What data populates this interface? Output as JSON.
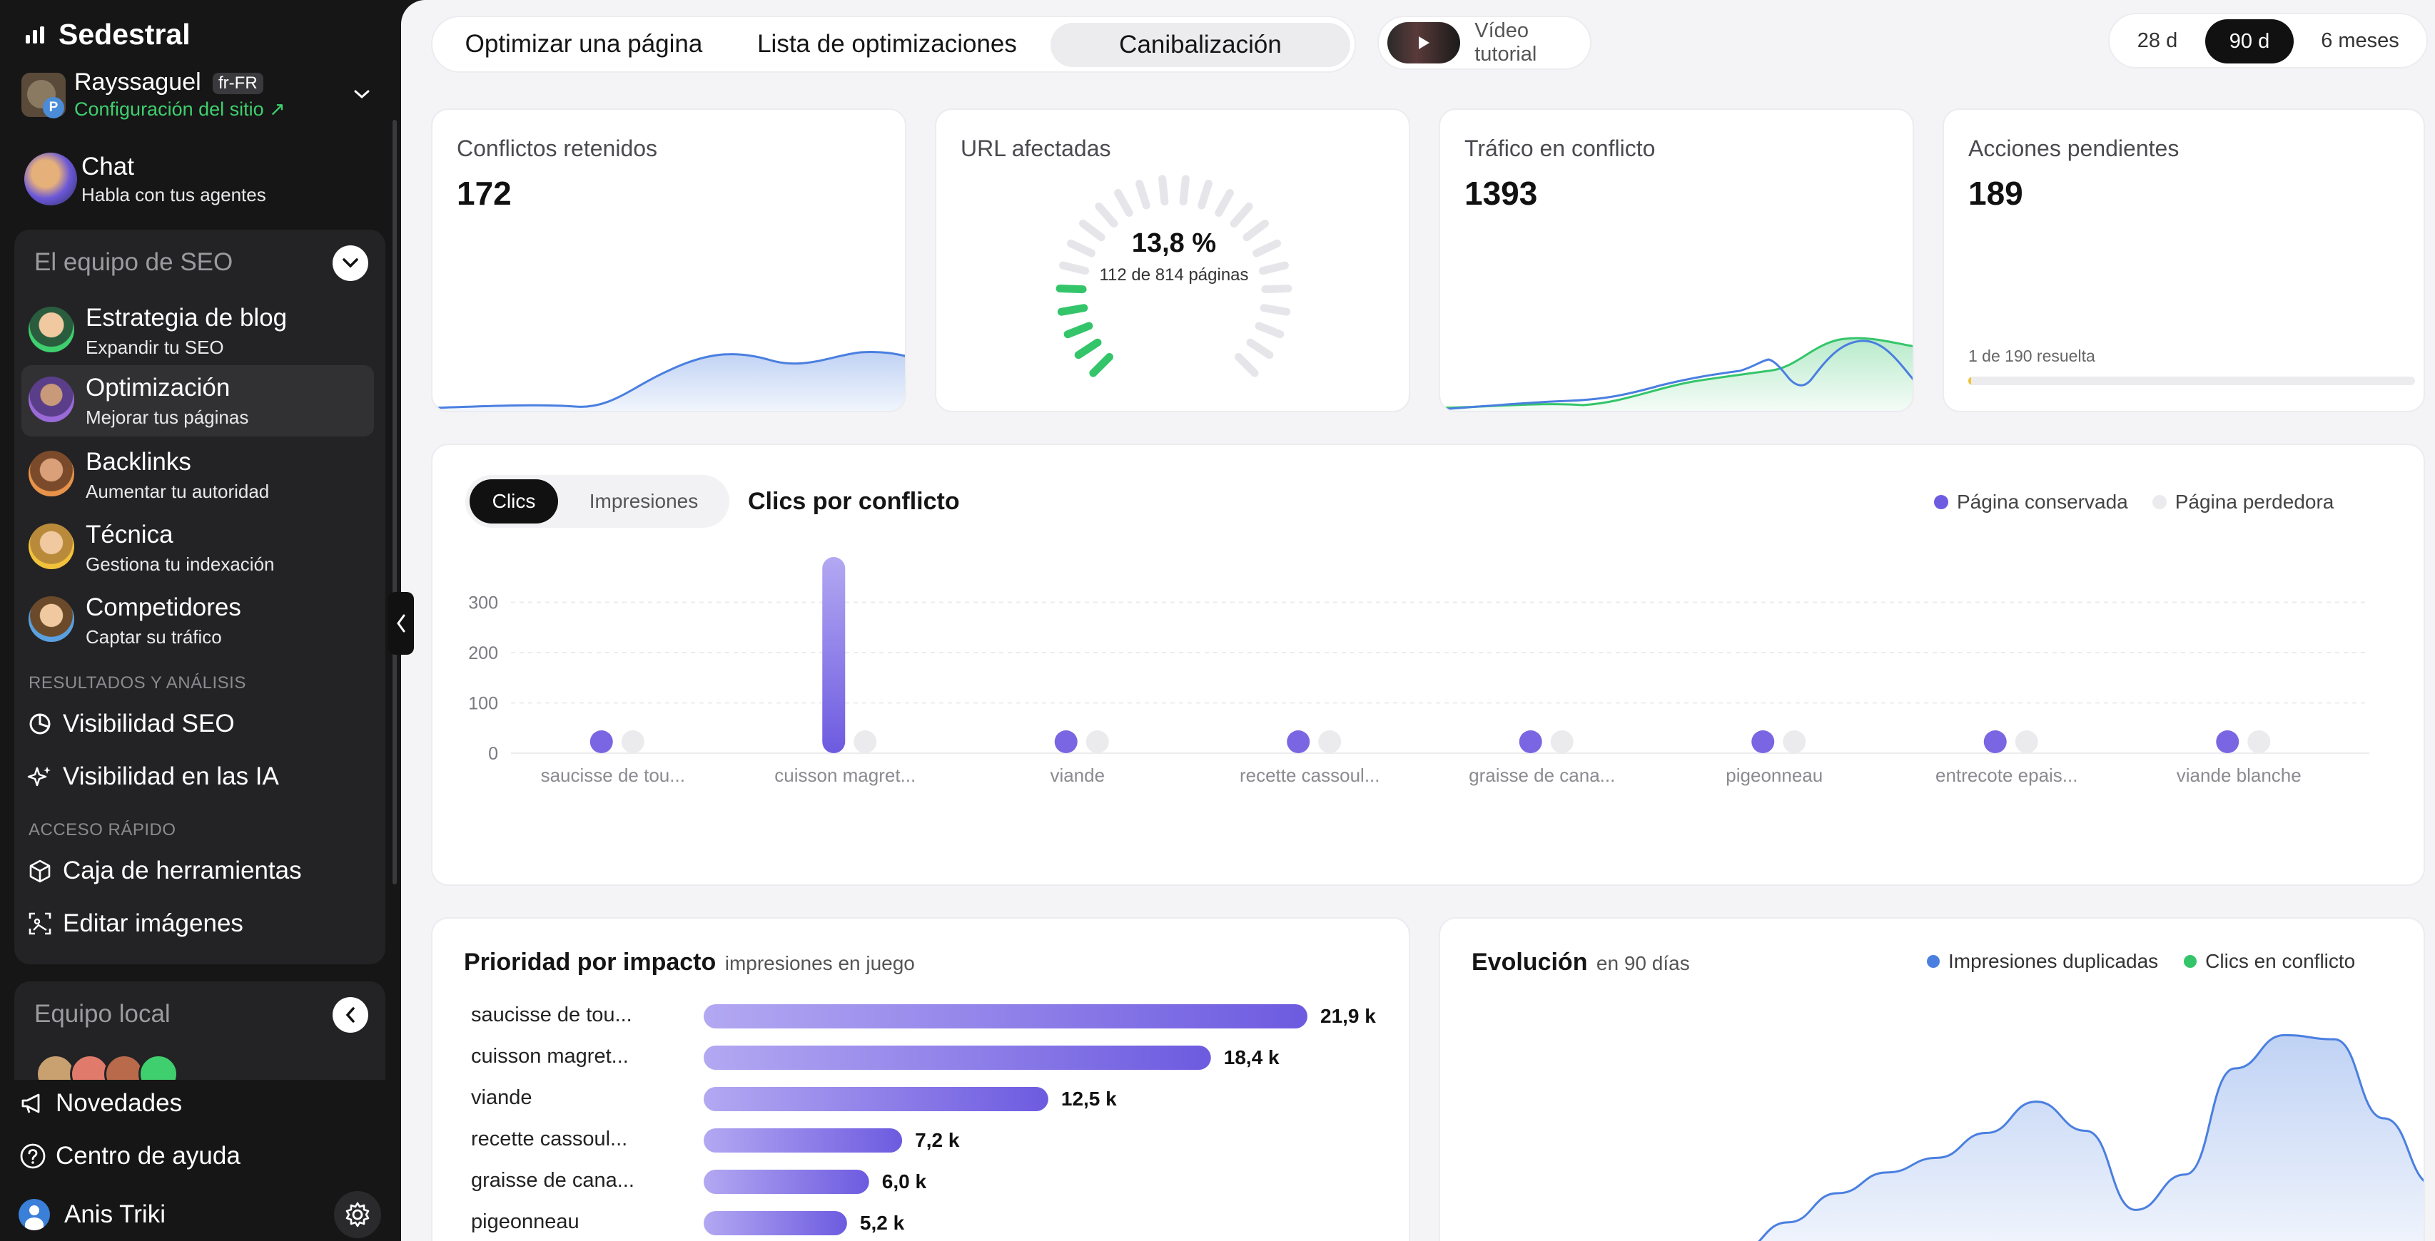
{
  "app": {
    "name": "Sedestral"
  },
  "site": {
    "name": "Rayssaguel",
    "locale": "fr-FR",
    "config_link": "Configuración del sitio ↗",
    "badge_letter": "P"
  },
  "chat": {
    "title": "Chat",
    "subtitle": "Habla con tus agentes"
  },
  "seo_team": {
    "title": "El equipo de SEO",
    "items": [
      {
        "title": "Estrategia de blog",
        "subtitle": "Expandir tu SEO"
      },
      {
        "title": "Optimización",
        "subtitle": "Mejorar tus páginas"
      },
      {
        "title": "Backlinks",
        "subtitle": "Aumentar tu autoridad"
      },
      {
        "title": "Técnica",
        "subtitle": "Gestiona tu indexación"
      },
      {
        "title": "Competidores",
        "subtitle": "Captar su tráfico"
      }
    ]
  },
  "results_section": {
    "title": "RESULTADOS Y ANÁLISIS",
    "items": [
      "Visibilidad SEO",
      "Visibilidad en las IA"
    ]
  },
  "quick_section": {
    "title": "ACCESO RÁPIDO",
    "items": [
      "Caja de herramientas",
      "Editar imágenes"
    ]
  },
  "local_team": {
    "title": "Equipo local"
  },
  "footer": {
    "news": "Novedades",
    "help": "Centro de ayuda",
    "user": "Anis Triki"
  },
  "tabs": [
    "Optimizar una página",
    "Lista de optimizaciones",
    "Canibalización"
  ],
  "video": {
    "label": "Vídeo tutorial"
  },
  "periods": [
    "28 d",
    "90 d",
    "6 meses"
  ],
  "kpis": {
    "conflicts": {
      "label": "Conflictos retenidos",
      "value": "172"
    },
    "urls": {
      "label": "URL afectadas",
      "percent": "13,8 %",
      "detail": "112 de 814 páginas",
      "fraction": 0.138
    },
    "traffic": {
      "label": "Tráfico en conflicto",
      "value": "1393"
    },
    "actions": {
      "label": "Acciones pendientes",
      "value": "189",
      "progress_label": "1 de 190 resuelta",
      "progress": 0.005
    }
  },
  "clicks_chart": {
    "toggle": [
      "Clics",
      "Impresiones"
    ],
    "title": "Clics por conflicto",
    "legend": [
      "Página conservada",
      "Página perdedora"
    ]
  },
  "priority": {
    "title": "Prioridad por impacto",
    "subtitle": "impresiones en juego",
    "rows": [
      {
        "label": "saucisse de tou...",
        "value": "21,9 k"
      },
      {
        "label": "cuisson magret...",
        "value": "18,4 k"
      },
      {
        "label": "viande",
        "value": "12,5 k"
      },
      {
        "label": "recette cassoul...",
        "value": "7,2 k"
      },
      {
        "label": "graisse de cana...",
        "value": "6,0 k"
      },
      {
        "label": "pigeonneau",
        "value": "5,2 k"
      }
    ]
  },
  "evolution": {
    "title": "Evolución",
    "subtitle": "en 90 días",
    "legend": [
      "Impresiones duplicadas",
      "Clics en conflicto"
    ]
  },
  "colors": {
    "accent": "#6d5be0",
    "green": "#34c56a",
    "blue": "#4a7fe0",
    "dark": "#161616"
  },
  "chart_data": [
    {
      "type": "bar",
      "title": "Clics por conflicto",
      "categories": [
        "saucisse de tou...",
        "cuisson magret...",
        "viande",
        "recette cassoul...",
        "graisse de cana...",
        "pigeonneau",
        "entrecote epais...",
        "viande blanche"
      ],
      "series": [
        {
          "name": "Página conservada",
          "values": [
            22,
            390,
            15,
            15,
            15,
            15,
            15,
            15
          ]
        },
        {
          "name": "Página perdedora",
          "values": [
            10,
            10,
            10,
            10,
            10,
            10,
            10,
            10
          ]
        }
      ],
      "ylim": [
        0,
        400
      ],
      "yticks": [
        0,
        100,
        200,
        300
      ],
      "grid": true,
      "legend": "top-right"
    },
    {
      "type": "bar",
      "title": "Prioridad por impacto",
      "orientation": "horizontal",
      "categories": [
        "saucisse de tou...",
        "cuisson magret...",
        "viande",
        "recette cassoul...",
        "graisse de cana...",
        "pigeonneau"
      ],
      "values": [
        21.9,
        18.4,
        12.5,
        7.2,
        6.0,
        5.2
      ],
      "unit": "k"
    },
    {
      "type": "area",
      "title": "Evolución",
      "series": [
        {
          "name": "Impresiones duplicadas",
          "values": [
            0,
            0,
            0,
            0,
            0,
            0,
            8,
            22,
            36,
            46,
            53,
            65,
            80,
            66,
            28,
            45,
            96,
            112,
            110,
            72,
            40
          ]
        }
      ]
    }
  ]
}
